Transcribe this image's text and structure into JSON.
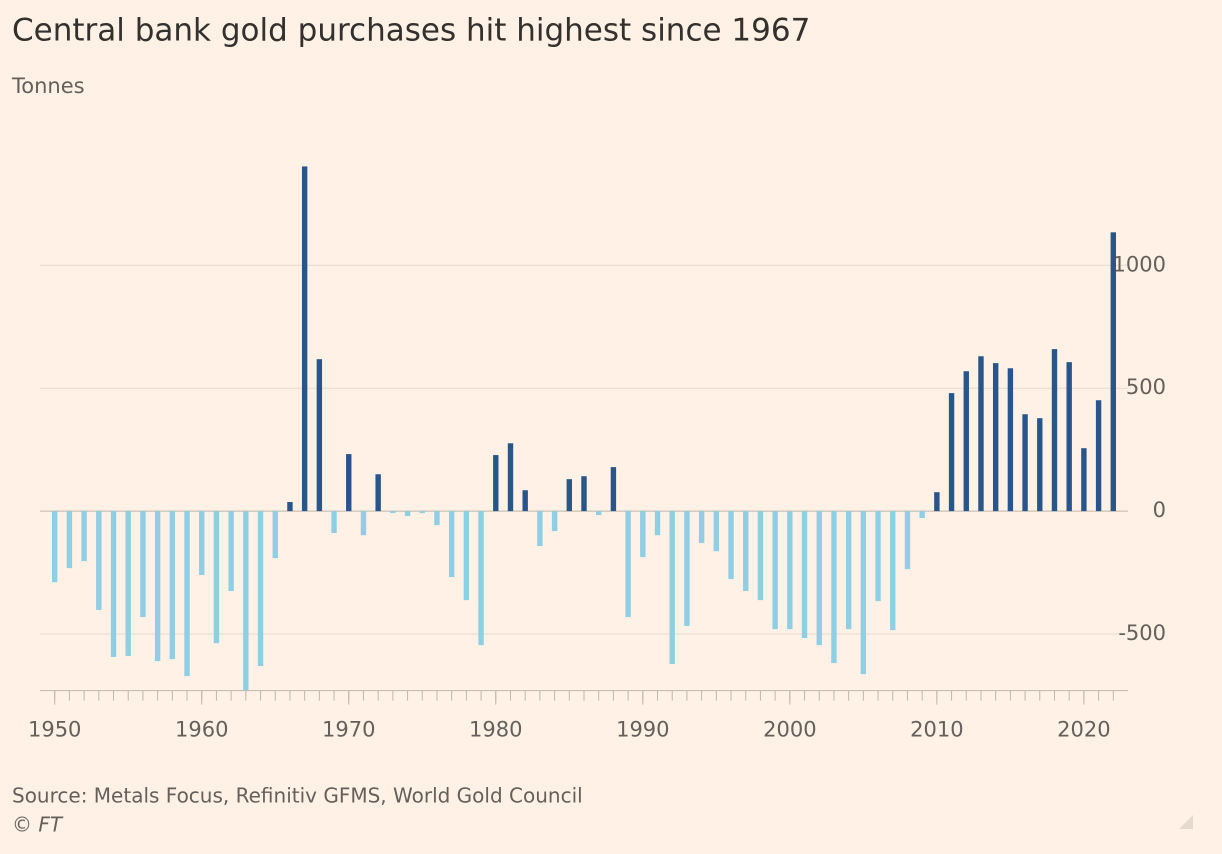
{
  "chart_data": {
    "type": "bar",
    "title": "Central bank gold purchases hit highest since 1967",
    "subtitle": "Tonnes",
    "source": "Source: Metals Focus, Refinitiv GFMS, World Gold Council",
    "credit": "© FT",
    "x": [
      1950,
      1951,
      1952,
      1953,
      1954,
      1955,
      1956,
      1957,
      1958,
      1959,
      1960,
      1961,
      1962,
      1963,
      1964,
      1965,
      1966,
      1967,
      1968,
      1969,
      1970,
      1971,
      1972,
      1973,
      1974,
      1975,
      1976,
      1977,
      1978,
      1979,
      1980,
      1981,
      1982,
      1983,
      1984,
      1985,
      1986,
      1987,
      1988,
      1989,
      1990,
      1991,
      1992,
      1993,
      1994,
      1995,
      1996,
      1997,
      1998,
      1999,
      2000,
      2001,
      2002,
      2003,
      2004,
      2005,
      2006,
      2007,
      2008,
      2009,
      2010,
      2011,
      2012,
      2013,
      2014,
      2015,
      2016,
      2017,
      2018,
      2019,
      2020,
      2021,
      2022
    ],
    "values": [
      -289,
      -232,
      -203,
      -402,
      -593,
      -589,
      -431,
      -610,
      -602,
      -671,
      -260,
      -537,
      -325,
      -728,
      -630,
      -191,
      37,
      1402,
      618,
      -89,
      232,
      -98,
      150,
      -8,
      -20,
      -8,
      -57,
      -268,
      -362,
      -545,
      228,
      276,
      85,
      -142,
      -81,
      130,
      142,
      -16,
      179,
      -431,
      -187,
      -98,
      -622,
      -467,
      -130,
      -163,
      -276,
      -325,
      -362,
      -480,
      -480,
      -516,
      -545,
      -618,
      -480,
      -663,
      -366,
      -484,
      -236,
      -28,
      77,
      480,
      569,
      630,
      602,
      581,
      394,
      378,
      659,
      606,
      256,
      451,
      1134
    ],
    "color_positive": "#29568a",
    "color_negative": "#8fcfe6",
    "xlim": [
      1949,
      2023
    ],
    "xticks": [
      1950,
      1960,
      1970,
      1980,
      1990,
      2000,
      2010,
      2020
    ],
    "ylim": [
      -730,
      1420
    ],
    "yticks": [
      -500,
      0,
      500,
      1000
    ],
    "grid": true
  }
}
